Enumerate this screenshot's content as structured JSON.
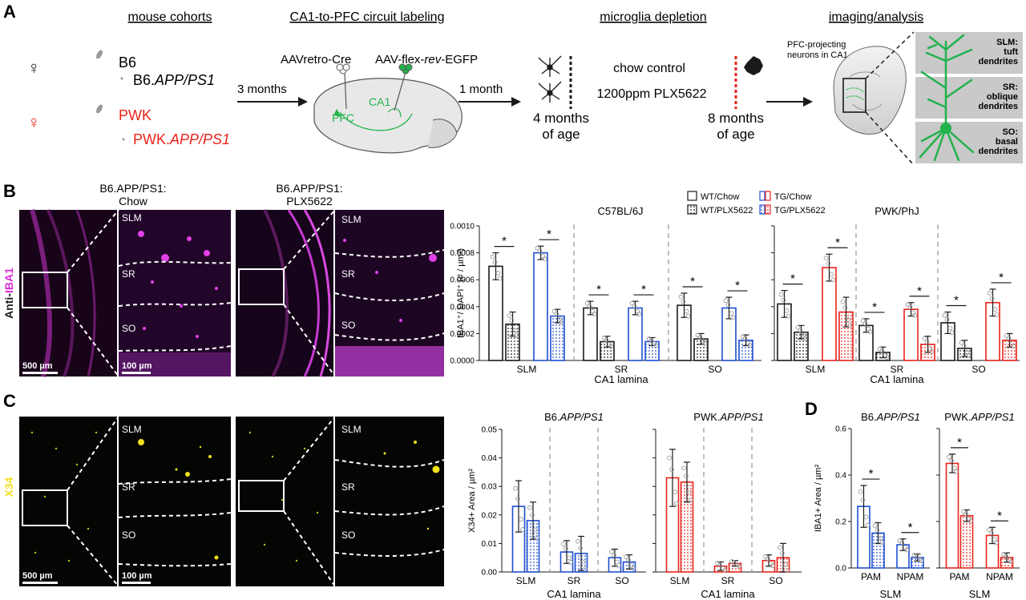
{
  "colors": {
    "black": "#1a1a1a",
    "blue": "#1f4fd1",
    "red": "#e8231b",
    "green": "#22b24c",
    "magenta": "#d72bd9",
    "yellow": "#f2e21c",
    "grey": "#9a9a9a"
  },
  "panel_a": {
    "letter": "A",
    "headings": [
      "mouse cohorts",
      "CA1-to-PFC circuit labeling",
      "microglia depletion",
      "imaging/analysis"
    ],
    "cohorts": {
      "female_symbol": "♀",
      "b6": "B6",
      "b6_app_prefix": "B6.",
      "b6_app_suffix": "APP/PS1",
      "pwk": "PWK",
      "pwk_app_prefix": "PWK.",
      "pwk_app_suffix": "APP/PS1"
    },
    "arrow1": "3 months",
    "arrow2": "1 month",
    "aav_retro": "AAVretro-Cre",
    "aav_flex_prefix": "AAV-flex-",
    "aav_flex_rev": "rev",
    "aav_flex_suffix": "-EGFP",
    "pfc": "PFC",
    "ca1": "CA1",
    "age1": [
      "4 months",
      "of age"
    ],
    "age2": [
      "8 months",
      "of age"
    ],
    "chow": "chow control",
    "plx": "1200ppm PLX5622",
    "pfc_proj": [
      "PFC-projecting",
      "neurons in CA1"
    ],
    "layers": [
      {
        "name": "SLM:",
        "desc1": "tuft",
        "desc2": "dendrites"
      },
      {
        "name": "SR:",
        "desc1": "oblique",
        "desc2": "dendrites"
      },
      {
        "name": "SO:",
        "desc1": "basal",
        "desc2": "dendrites"
      }
    ]
  },
  "panel_b": {
    "letter": "B",
    "stain_label_prefix": "Anti-",
    "stain_label_marker": "IBA1",
    "title_left": [
      "B6.APP/PS1:",
      "Chow"
    ],
    "title_right": [
      "B6.APP/PS1:",
      "PLX5622"
    ],
    "lamina": [
      "SLM",
      "SR",
      "SO"
    ],
    "scale_big": "500 µm",
    "scale_small": "100 µm"
  },
  "panel_c": {
    "letter": "C",
    "stain_label": "X34",
    "lamina": [
      "SLM",
      "SR",
      "SO"
    ],
    "scale_big": "500 µm",
    "scale_small": "100 µm"
  },
  "panel_d": {
    "letter": "D"
  },
  "legend": {
    "wt_chow": "WT/Chow",
    "wt_plx": "WT/PLX5622",
    "tg_chow": "TG/Chow",
    "tg_plx": "TG/PLX5622"
  },
  "chart_data": [
    {
      "id": "B-C57",
      "type": "bar",
      "title": "C57BL/6J",
      "ylabel": "IBA1⁺/ DAPI⁺ (# / µm²)",
      "xlabel": "CA1 lamina",
      "ylim": [
        0,
        0.001
      ],
      "yticks": [
        "0.0000",
        "0.0002",
        "0.0004",
        "0.0006",
        "0.0008",
        "0.0010"
      ],
      "categories": [
        "SLM",
        "SR",
        "SO"
      ],
      "series": [
        {
          "name": "WT/Chow",
          "color": "black",
          "pattern": "open",
          "values": [
            0.0007,
            0.00039,
            0.00041
          ],
          "err": [
            0.0001,
            5e-05,
            9e-05
          ]
        },
        {
          "name": "WT/PLX5622",
          "color": "black",
          "pattern": "dots",
          "values": [
            0.00027,
            0.00014,
            0.00016
          ],
          "err": [
            9e-05,
            4e-05,
            4e-05
          ]
        },
        {
          "name": "TG/Chow",
          "color": "blue",
          "pattern": "open",
          "values": [
            0.0008,
            0.00039,
            0.00039
          ],
          "err": [
            5e-05,
            5e-05,
            8e-05
          ]
        },
        {
          "name": "TG/PLX5622",
          "color": "blue",
          "pattern": "dots",
          "values": [
            0.00033,
            0.00014,
            0.00015
          ],
          "err": [
            5e-05,
            3e-05,
            4e-05
          ]
        }
      ],
      "significance": [
        {
          "group": 0,
          "pair": [
            0,
            1
          ],
          "label": "*"
        },
        {
          "group": 0,
          "pair": [
            2,
            3
          ],
          "label": "*"
        },
        {
          "group": 1,
          "pair": [
            0,
            1
          ],
          "label": "*"
        },
        {
          "group": 1,
          "pair": [
            2,
            3
          ],
          "label": "*"
        },
        {
          "group": 2,
          "pair": [
            0,
            1
          ],
          "label": "*"
        },
        {
          "group": 2,
          "pair": [
            2,
            3
          ],
          "label": "*"
        }
      ]
    },
    {
      "id": "B-PWK",
      "type": "bar",
      "title": "PWK/PhJ",
      "xlabel": "CA1 lamina",
      "ylim": [
        0,
        0.001
      ],
      "categories": [
        "SLM",
        "SR",
        "SO"
      ],
      "series": [
        {
          "name": "WT/Chow",
          "color": "black",
          "pattern": "open",
          "values": [
            0.00042,
            0.00026,
            0.00028
          ],
          "err": [
            0.0001,
            5e-05,
            8e-05
          ]
        },
        {
          "name": "WT/PLX5622",
          "color": "black",
          "pattern": "dots",
          "values": [
            0.00021,
            6e-05,
            9e-05
          ],
          "err": [
            5e-05,
            4e-05,
            6e-05
          ]
        },
        {
          "name": "TG/Chow",
          "color": "red",
          "pattern": "open",
          "values": [
            0.00069,
            0.00038,
            0.00043
          ],
          "err": [
            0.0001,
            5e-05,
            0.0001
          ]
        },
        {
          "name": "TG/PLX5622",
          "color": "red",
          "pattern": "dots",
          "values": [
            0.00036,
            0.00012,
            0.00015
          ],
          "err": [
            0.00011,
            6e-05,
            5e-05
          ]
        }
      ],
      "significance": [
        {
          "group": 0,
          "pair": [
            0,
            1
          ],
          "label": "*"
        },
        {
          "group": 0,
          "pair": [
            2,
            3
          ],
          "label": "*"
        },
        {
          "group": 1,
          "pair": [
            0,
            1
          ],
          "label": "*"
        },
        {
          "group": 1,
          "pair": [
            2,
            3
          ],
          "label": "*"
        },
        {
          "group": 2,
          "pair": [
            0,
            1
          ],
          "label": "*"
        },
        {
          "group": 2,
          "pair": [
            2,
            3
          ],
          "label": "*"
        }
      ]
    },
    {
      "id": "C-B6",
      "type": "bar",
      "title": "B6.APP/PS1",
      "ylabel": "X34+ Area / µm²",
      "xlabel": "CA1 lamina",
      "ylim": [
        0,
        0.05
      ],
      "yticks": [
        "0.00",
        "0.01",
        "0.02",
        "0.03",
        "0.04",
        "0.05"
      ],
      "categories": [
        "SLM",
        "SR",
        "SO"
      ],
      "series": [
        {
          "name": "TG/Chow",
          "color": "blue",
          "pattern": "open",
          "values": [
            0.023,
            0.007,
            0.005
          ],
          "err": [
            0.009,
            0.004,
            0.003
          ]
        },
        {
          "name": "TG/PLX5622",
          "color": "blue",
          "pattern": "dots",
          "values": [
            0.018,
            0.0065,
            0.0035
          ],
          "err": [
            0.0065,
            0.006,
            0.0025
          ]
        }
      ],
      "significance": []
    },
    {
      "id": "C-PWK",
      "type": "bar",
      "title": "PWK.APP/PS1",
      "xlabel": "CA1 lamina",
      "ylim": [
        0,
        0.05
      ],
      "categories": [
        "SLM",
        "SR",
        "SO"
      ],
      "series": [
        {
          "name": "TG/Chow",
          "color": "red",
          "pattern": "open",
          "values": [
            0.033,
            0.002,
            0.004
          ],
          "err": [
            0.01,
            0.0015,
            0.002
          ]
        },
        {
          "name": "TG/PLX5622",
          "color": "red",
          "pattern": "dots",
          "values": [
            0.0315,
            0.003,
            0.005
          ],
          "err": [
            0.007,
            0.001,
            0.005
          ]
        }
      ],
      "significance": []
    },
    {
      "id": "D-B6",
      "type": "bar",
      "title": "B6.APP/PS1",
      "ylabel": "IBA1+ Area / µm²",
      "xlabel": "SLM",
      "ylim": [
        0,
        0.6
      ],
      "yticks": [
        "0.0",
        "0.2",
        "0.4",
        "0.6"
      ],
      "categories": [
        "PAM",
        "NPAM"
      ],
      "series": [
        {
          "name": "TG/Chow",
          "color": "blue",
          "pattern": "open",
          "values": [
            0.265,
            0.1
          ],
          "err": [
            0.09,
            0.025
          ]
        },
        {
          "name": "TG/PLX5622",
          "color": "blue",
          "pattern": "dots",
          "values": [
            0.15,
            0.045
          ],
          "err": [
            0.045,
            0.015
          ]
        }
      ],
      "significance": [
        {
          "group": 0,
          "pair": [
            0,
            1
          ],
          "label": "*"
        },
        {
          "group": 1,
          "pair": [
            0,
            1
          ],
          "label": "*"
        }
      ]
    },
    {
      "id": "D-PWK",
      "type": "bar",
      "title": "PWK.APP/PS1",
      "xlabel": "SLM",
      "ylim": [
        0,
        0.6
      ],
      "categories": [
        "PAM",
        "NPAM"
      ],
      "series": [
        {
          "name": "TG/Chow",
          "color": "red",
          "pattern": "open",
          "values": [
            0.45,
            0.14
          ],
          "err": [
            0.04,
            0.035
          ]
        },
        {
          "name": "TG/PLX5622",
          "color": "red",
          "pattern": "dots",
          "values": [
            0.225,
            0.045
          ],
          "err": [
            0.025,
            0.02
          ]
        }
      ],
      "significance": [
        {
          "group": 0,
          "pair": [
            0,
            1
          ],
          "label": "*"
        },
        {
          "group": 1,
          "pair": [
            0,
            1
          ],
          "label": "*"
        }
      ]
    }
  ]
}
